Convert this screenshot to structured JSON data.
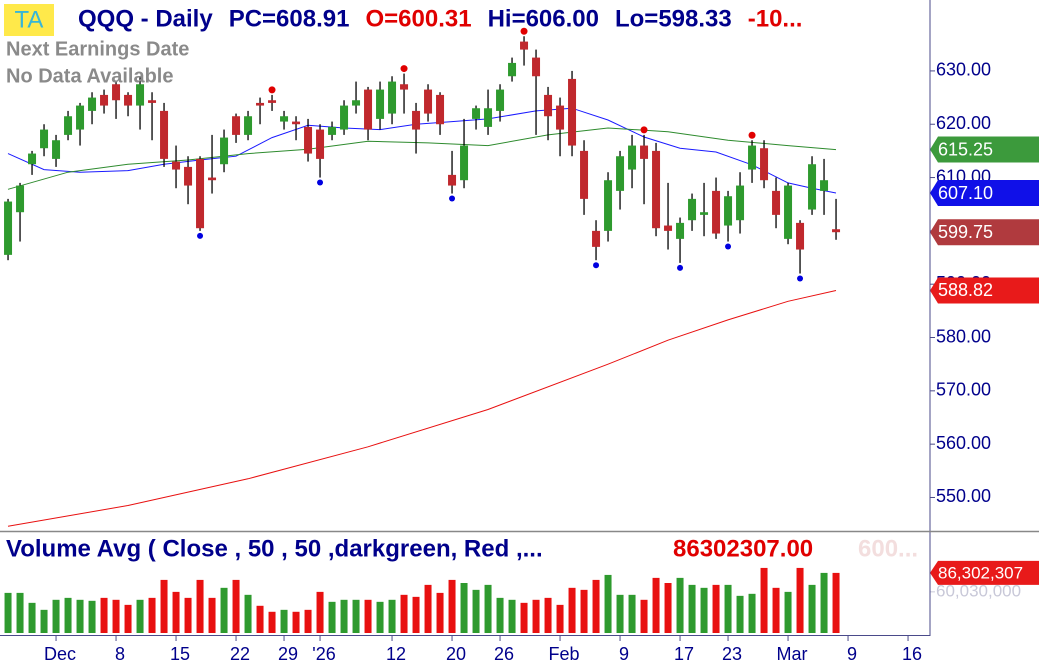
{
  "chart_data": [
    {
      "type": "candlestick",
      "badge": "TA",
      "title": "QQQ - Daily",
      "header_items": [
        {
          "text": "PC=608.91",
          "color": "#00008b"
        },
        {
          "text": "O=600.31",
          "color": "#e00000"
        },
        {
          "text": "Hi=606.00",
          "color": "#00008b"
        },
        {
          "text": "Lo=598.33",
          "color": "#00008b"
        },
        {
          "text": "-10...",
          "color": "#e00000"
        }
      ],
      "notes": [
        "Next Earnings Date",
        "No Data Available"
      ],
      "x": [
        0,
        1,
        2,
        3,
        4,
        5,
        6,
        7,
        8,
        9,
        10,
        11,
        12,
        13,
        14,
        15,
        16,
        17,
        18,
        19,
        20,
        21,
        22,
        23,
        24,
        25,
        26,
        27,
        28,
        29,
        30,
        31,
        32,
        33,
        34,
        35,
        36,
        37,
        38,
        39,
        40,
        41,
        42,
        43,
        44,
        45,
        46,
        47,
        48,
        49,
        50,
        51,
        52,
        53,
        54,
        55,
        56,
        57,
        58,
        59,
        60,
        61,
        62,
        63,
        64,
        65,
        66,
        67,
        68,
        69
      ],
      "open": [
        595.5,
        603.5,
        612.5,
        615.5,
        613.5,
        618,
        619,
        622.5,
        625.5,
        627.5,
        625.5,
        623.5,
        624.5,
        622.5,
        613,
        612,
        613.5,
        610,
        612.5,
        621.5,
        618,
        624,
        624.5,
        620.5,
        620.5,
        619.5,
        619,
        618,
        619,
        623.5,
        626.5,
        621,
        622,
        627.5,
        622.5,
        626.5,
        625.5,
        610.5,
        609.5,
        621,
        619.5,
        622.5,
        629,
        635.5,
        632.5,
        625.5,
        623.5,
        628.5,
        615,
        600,
        600,
        607.5,
        611.5,
        616,
        615,
        601,
        598.5,
        602,
        603,
        607.5,
        601,
        602,
        611.5,
        615.5,
        607.5,
        598.5,
        601.5,
        604,
        607.5,
        600.31
      ],
      "high": [
        606,
        609,
        615,
        620,
        618,
        622.5,
        624,
        626,
        626.5,
        628,
        626,
        629,
        626,
        624,
        616,
        614,
        614,
        618,
        619,
        622,
        622.5,
        625,
        625.5,
        622.5,
        621.5,
        621,
        620,
        620.5,
        624.5,
        628,
        627,
        628,
        629,
        629.5,
        624,
        627.5,
        626,
        615,
        621,
        623.5,
        626.5,
        627.5,
        632.5,
        636.5,
        634,
        627,
        625,
        630,
        617,
        602,
        611,
        615,
        618,
        618,
        616.5,
        609,
        602.5,
        607,
        609,
        610,
        607.5,
        611,
        617,
        617,
        610,
        609,
        602,
        614,
        613.5,
        606
      ],
      "low": [
        594.5,
        598,
        610.5,
        614,
        612,
        617,
        616,
        620,
        622,
        621,
        621.5,
        619,
        617,
        612,
        608,
        605,
        600,
        607,
        611,
        616.5,
        617,
        620,
        622.5,
        619,
        617,
        613,
        610,
        617,
        618,
        622,
        617,
        619,
        620,
        622,
        614.5,
        620.5,
        618,
        607,
        608,
        619,
        618,
        620.5,
        628,
        631,
        618,
        617,
        614,
        614,
        603,
        594.5,
        598,
        604,
        608,
        605,
        599,
        596.5,
        594,
        600,
        599,
        598.5,
        598,
        599.5,
        609,
        608,
        600.5,
        597.5,
        592,
        603,
        603,
        598.33
      ],
      "close": [
        605.5,
        608.5,
        614.5,
        619,
        617,
        621.5,
        623.5,
        625,
        623.5,
        624.5,
        623.5,
        627.5,
        624,
        613.5,
        611.5,
        608.5,
        600.5,
        609.5,
        617.5,
        618,
        621.5,
        623.5,
        624,
        621.5,
        620,
        614.5,
        613.5,
        619.5,
        623.5,
        624.5,
        619,
        626.5,
        628,
        626.5,
        619,
        622,
        620,
        608.5,
        616,
        623,
        623,
        626.5,
        631.5,
        634,
        629,
        621.5,
        619,
        616,
        606,
        597,
        609.5,
        614,
        616,
        613.5,
        600.5,
        600,
        601.5,
        606,
        603.5,
        599.5,
        606.5,
        608.5,
        616,
        609.5,
        603,
        608.5,
        596.5,
        612.5,
        609.5,
        599.75
      ],
      "up_color": "#2e9a2e",
      "down_color": "#c0282d",
      "swing_highs": [
        22,
        33,
        43,
        53,
        62
      ],
      "swing_high_color": "#e00000",
      "swing_lows": [
        16,
        26,
        37,
        49,
        56,
        60,
        66
      ],
      "swing_low_color": "#0000e0",
      "series": [
        {
          "color": "#1a1aff",
          "x": [
            0,
            3,
            6,
            10,
            13,
            16,
            19,
            22,
            25,
            28,
            31,
            34,
            37,
            40,
            44,
            47,
            50,
            53,
            56,
            59,
            62,
            65,
            67,
            69
          ],
          "values": [
            614.5,
            611.5,
            611,
            611.3,
            612.5,
            613.3,
            614,
            617.5,
            619.8,
            619.3,
            619,
            620,
            620.5,
            621,
            622.5,
            623,
            620.8,
            617.6,
            615.5,
            614.8,
            612.4,
            609,
            608,
            607.1
          ]
        },
        {
          "color": "#2e8b2e",
          "x": [
            0,
            5,
            10,
            15,
            20,
            25,
            30,
            35,
            40,
            45,
            50,
            55,
            60,
            65,
            69
          ],
          "values": [
            607.8,
            611,
            612.5,
            613.3,
            614.5,
            615.3,
            616.8,
            616.5,
            616,
            618,
            619.3,
            618.6,
            617,
            616,
            615.25
          ]
        },
        {
          "color": "#e81010",
          "x": [
            0,
            10,
            20,
            30,
            40,
            50,
            55,
            60,
            65,
            69
          ],
          "values": [
            544.6,
            548.5,
            553.5,
            559.5,
            566.5,
            575,
            579.5,
            583.3,
            586.8,
            588.82
          ]
        }
      ],
      "price_tags": [
        {
          "value": 615.25,
          "label": "615.25",
          "color": "#3c9a3c"
        },
        {
          "value": 607.1,
          "label": "607.10",
          "color": "#1010e8"
        },
        {
          "value": 599.75,
          "label": "599.75",
          "color": "#b03a3e"
        },
        {
          "value": 588.82,
          "label": "588.82",
          "color": "#e81a1a"
        }
      ],
      "xlim": [
        -0.67,
        76.83
      ],
      "xticks": [
        {
          "value": 4,
          "label": "Dec"
        },
        {
          "value": 9,
          "label": "8"
        },
        {
          "value": 14,
          "label": "15"
        },
        {
          "value": 19,
          "label": "22"
        },
        {
          "value": 23,
          "label": "29"
        },
        {
          "value": 26,
          "label": "'26"
        },
        {
          "value": 32,
          "label": "12"
        },
        {
          "value": 37,
          "label": "20"
        },
        {
          "value": 41,
          "label": "26"
        },
        {
          "value": 46,
          "label": "Feb"
        },
        {
          "value": 51,
          "label": "9"
        },
        {
          "value": 56,
          "label": "17"
        },
        {
          "value": 60,
          "label": "23"
        },
        {
          "value": 65,
          "label": "Mar"
        },
        {
          "value": 70,
          "label": "9"
        },
        {
          "value": 75,
          "label": "16"
        }
      ],
      "ylim": [
        543.9,
        643.3
      ],
      "yticks": [
        {
          "value": 550,
          "label": "550.00"
        },
        {
          "value": 560,
          "label": "560.00"
        },
        {
          "value": 570,
          "label": "570.00"
        },
        {
          "value": 580,
          "label": "580.00"
        },
        {
          "value": 590,
          "label": "590.00"
        },
        {
          "value": 600,
          "label": "600.00"
        },
        {
          "value": 610,
          "label": "610.00"
        },
        {
          "value": 620,
          "label": "620.00"
        },
        {
          "value": 630,
          "label": "630.00"
        }
      ]
    },
    {
      "type": "bar",
      "title": "Volume Avg ( Close , 50 , 50 ,darkgreen, Red ,...",
      "value_text": "86302307.00",
      "faded_text": "600...",
      "values": [
        58600000,
        58600000,
        44800000,
        35100000,
        49000000,
        51700000,
        49000000,
        47600000,
        51700000,
        49000000,
        42000000,
        49000000,
        51700000,
        76600000,
        60000000,
        51700000,
        76600000,
        51700000,
        65600000,
        76600000,
        55900000,
        40700000,
        32400000,
        35100000,
        32400000,
        35100000,
        60000000,
        46200000,
        49000000,
        49000000,
        49000000,
        46200000,
        49000000,
        55900000,
        53100000,
        69700000,
        58600000,
        76600000,
        72300000,
        62800000,
        69700000,
        51700000,
        49000000,
        44800000,
        49000000,
        51700000,
        42000000,
        65600000,
        62800000,
        76600000,
        83500000,
        55900000,
        55900000,
        49000000,
        79400000,
        72300000,
        79400000,
        69700000,
        65600000,
        69700000,
        69700000,
        54500000,
        57300000,
        93200000,
        65600000,
        60000000,
        93200000,
        69700000,
        86300000,
        86302307
      ],
      "up_color": "#2e9a2e",
      "down_color": "#e81010",
      "ylim": [
        3000000,
        141600000
      ],
      "yticks": [
        {
          "value": 60030000,
          "label": "60,030,000"
        }
      ],
      "value_tag": {
        "value": 86302307,
        "label": "86,302,307",
        "color": "#e81a1a"
      }
    }
  ]
}
